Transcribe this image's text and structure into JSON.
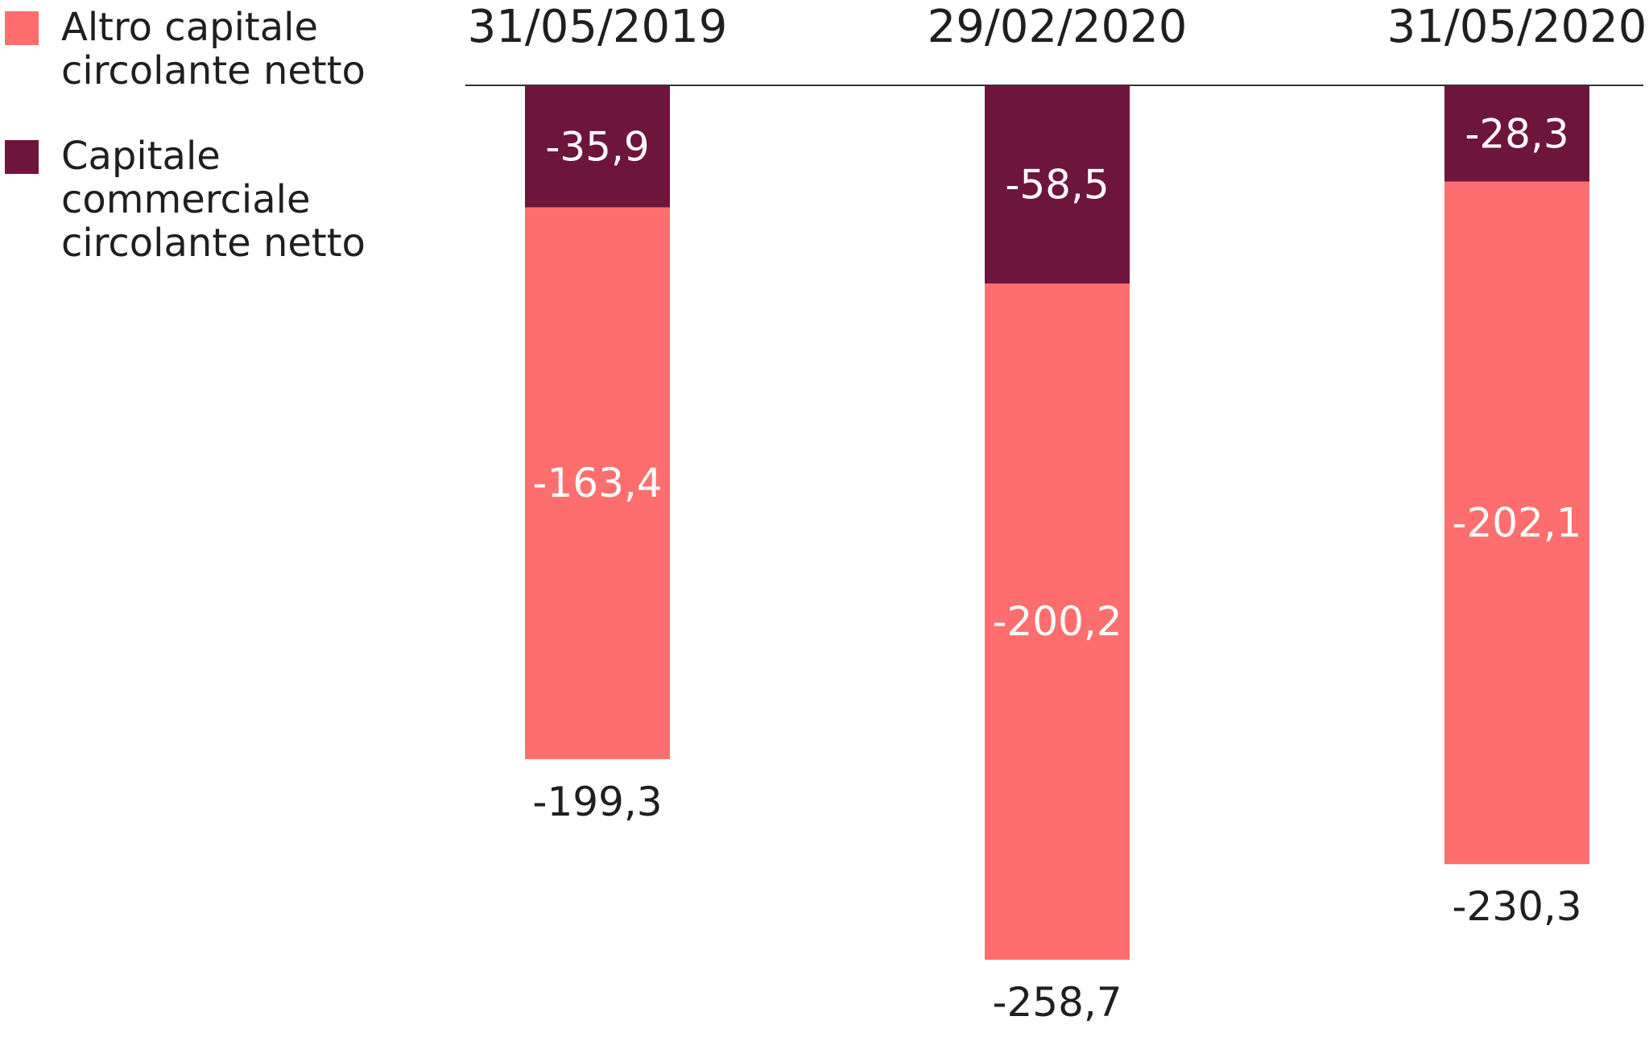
{
  "chart_data": {
    "type": "bar",
    "stacked": true,
    "orientation": "vertical-negative",
    "title": "",
    "xlabel": "",
    "ylabel": "",
    "ylim": [
      -258.7,
      0
    ],
    "grid": false,
    "legend_position": "top-left",
    "categories": [
      "31/05/2019",
      "29/02/2020",
      "31/05/2020"
    ],
    "series": [
      {
        "name": "Capitale commerciale circolante netto",
        "legend_lines": [
          "Capitale",
          "commerciale",
          "circolante netto"
        ],
        "color": "#6e153e",
        "values": [
          -35.9,
          -58.5,
          -28.3
        ],
        "labels": [
          "-35,9",
          "-58,5",
          "-28,3"
        ]
      },
      {
        "name": "Altro capitale circolante netto",
        "legend_lines": [
          "Altro capitale",
          "circolante netto"
        ],
        "color": "#ff6e6e",
        "values": [
          -163.4,
          -200.2,
          -202.1
        ],
        "labels": [
          "-163,4",
          "-200,2",
          "-202,1"
        ]
      }
    ],
    "totals": [
      -199.3,
      -258.7,
      -230.3
    ],
    "total_labels": [
      "-199,3",
      "-258,7",
      "-230,3"
    ],
    "legend_order": [
      1,
      0
    ]
  }
}
